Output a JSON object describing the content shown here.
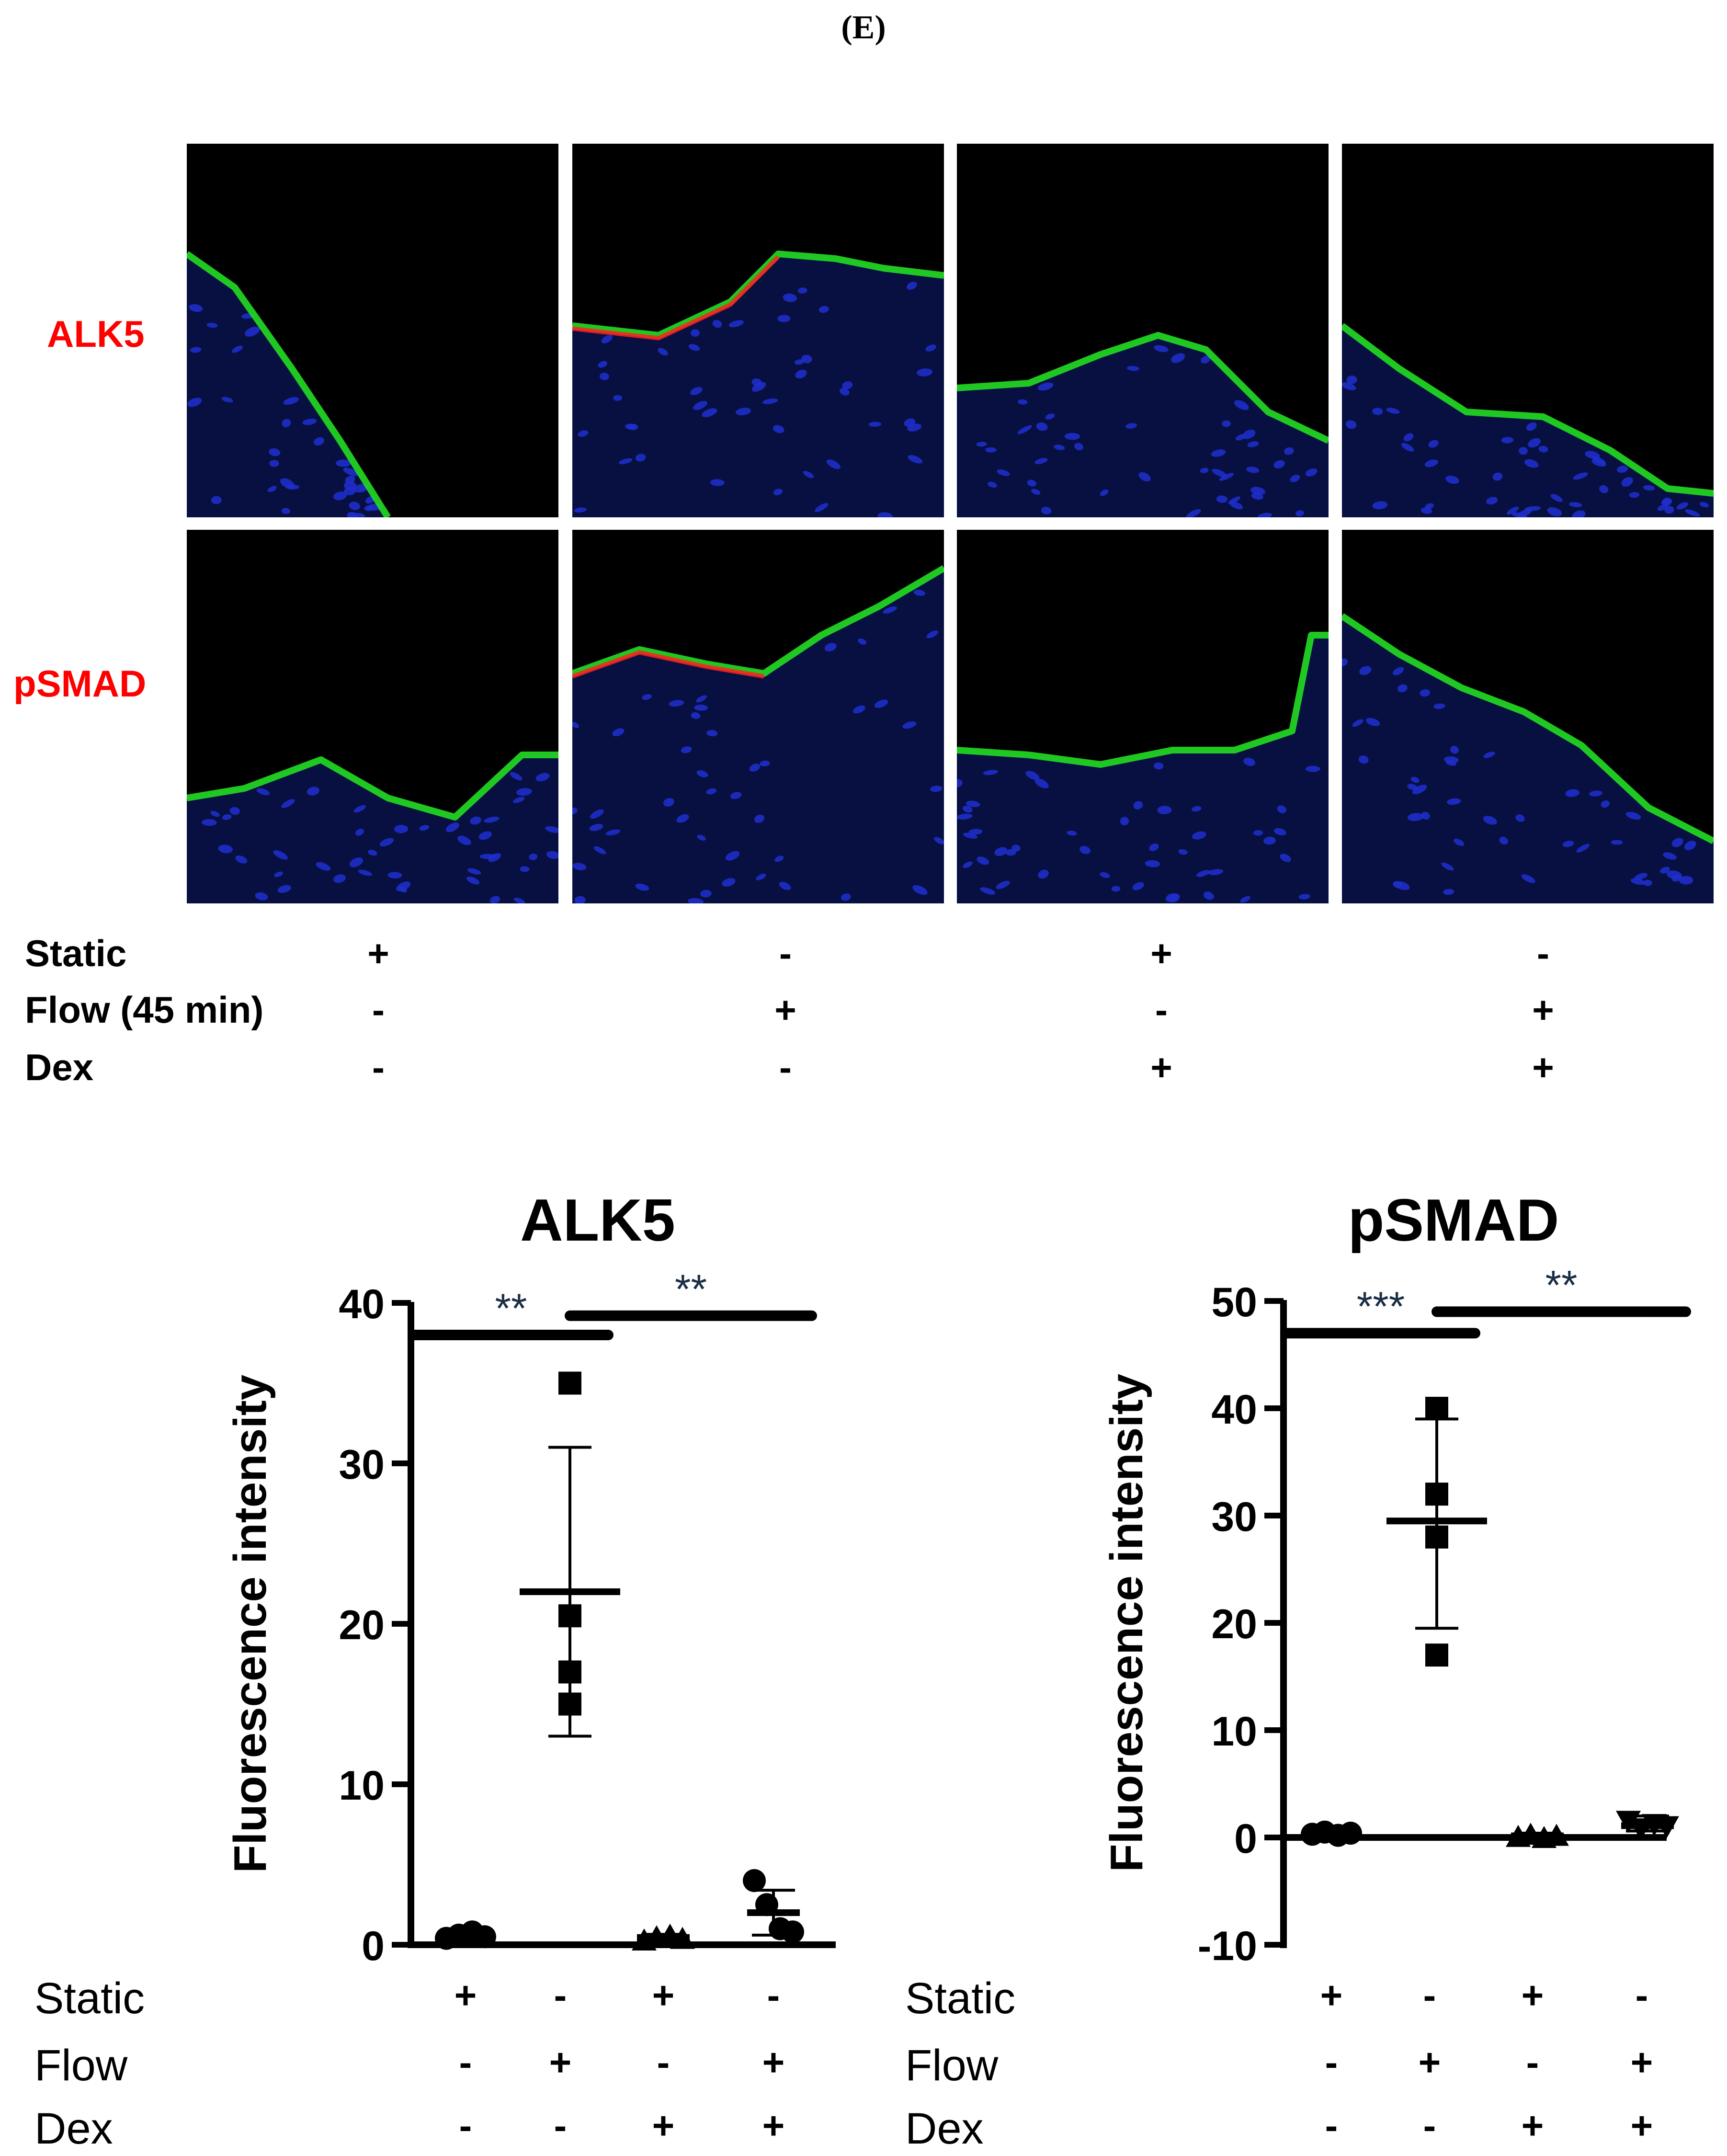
{
  "panel_label": "(E)",
  "micrographs": {
    "rows": [
      "ALK5",
      "pSMAD"
    ],
    "treatment_rows": [
      {
        "label": "Static",
        "symbols": [
          "+",
          "-",
          "+",
          "-"
        ]
      },
      {
        "label": "Flow (45 min)",
        "symbols": [
          "-",
          "+",
          "-",
          "+"
        ]
      },
      {
        "label": "Dex",
        "symbols": [
          "-",
          "-",
          "+",
          "+"
        ]
      }
    ],
    "colors": {
      "stain_green": "#22dd22",
      "stain_red": "#ff2020",
      "nuclei_blue": "#1f2fd0",
      "background": "#000000",
      "row_label": "#ff0000"
    }
  },
  "chart_data": [
    {
      "type": "scatter",
      "title": "ALK5",
      "ylabel": "Fluorescence intensity",
      "ylim": [
        0,
        40
      ],
      "yticks": [
        0,
        10,
        20,
        30,
        40
      ],
      "categories": [
        1,
        2,
        3,
        4
      ],
      "groups": [
        {
          "marker": "circle",
          "points": [
            0.4,
            0.6,
            0.8,
            0.5
          ],
          "mean": 0.5,
          "sd_low": 0.2,
          "sd_high": 0.8
        },
        {
          "marker": "square",
          "points": [
            35,
            20.5,
            17,
            15
          ],
          "mean": 22,
          "sd_low": 13,
          "sd_high": 31
        },
        {
          "marker": "triangle",
          "points": [
            0.3,
            0.5,
            0.6,
            0.4
          ],
          "mean": 0.45,
          "sd_low": 0.25,
          "sd_high": 0.65
        },
        {
          "marker": "circle",
          "points": [
            4,
            2.5,
            1,
            0.8
          ],
          "mean": 2,
          "sd_low": 0.6,
          "sd_high": 3.4
        }
      ],
      "significance": [
        {
          "label": "**",
          "from": 1,
          "to": 2,
          "y": 38
        },
        {
          "label": "**",
          "from": 2,
          "to": 4,
          "y": 39.2
        }
      ],
      "treatment_rows": [
        {
          "label": "Static",
          "symbols": [
            "+",
            "-",
            "+",
            "-"
          ]
        },
        {
          "label": "Flow",
          "symbols": [
            "-",
            "+",
            "-",
            "+"
          ]
        },
        {
          "label": "Dex",
          "symbols": [
            "-",
            "-",
            "+",
            "+"
          ]
        }
      ]
    },
    {
      "type": "scatter",
      "title": "pSMAD",
      "ylabel": "Fluorescence intensity",
      "ylim": [
        -10,
        50
      ],
      "yticks": [
        -10,
        0,
        10,
        20,
        30,
        40,
        50
      ],
      "categories": [
        1,
        2,
        3,
        4
      ],
      "groups": [
        {
          "marker": "circle",
          "points": [
            0.3,
            0.5,
            0.2,
            0.4
          ],
          "mean": 0.35,
          "sd_low": 0.2,
          "sd_high": 0.5
        },
        {
          "marker": "square",
          "points": [
            40,
            32,
            28,
            17
          ],
          "mean": 29.5,
          "sd_low": 19.5,
          "sd_high": 39
        },
        {
          "marker": "triangle",
          "points": [
            0.1,
            0.3,
            0.0,
            0.2
          ],
          "mean": 0.15,
          "sd_low": -0.1,
          "sd_high": 0.4
        },
        {
          "marker": "triangle_down",
          "points": [
            1.5,
            0.8,
            1.2,
            1.0
          ],
          "mean": 1.1,
          "sd_low": 0.6,
          "sd_high": 2.0
        }
      ],
      "significance": [
        {
          "label": "***",
          "from": 1,
          "to": 2,
          "y": 47
        },
        {
          "label": "**",
          "from": 2,
          "to": 4,
          "y": 49
        }
      ],
      "treatment_rows": [
        {
          "label": "Static",
          "symbols": [
            "+",
            "-",
            "+",
            "-"
          ]
        },
        {
          "label": "Flow",
          "symbols": [
            "-",
            "+",
            "-",
            "+"
          ]
        },
        {
          "label": "Dex",
          "symbols": [
            "-",
            "-",
            "+",
            "+"
          ]
        }
      ]
    }
  ]
}
